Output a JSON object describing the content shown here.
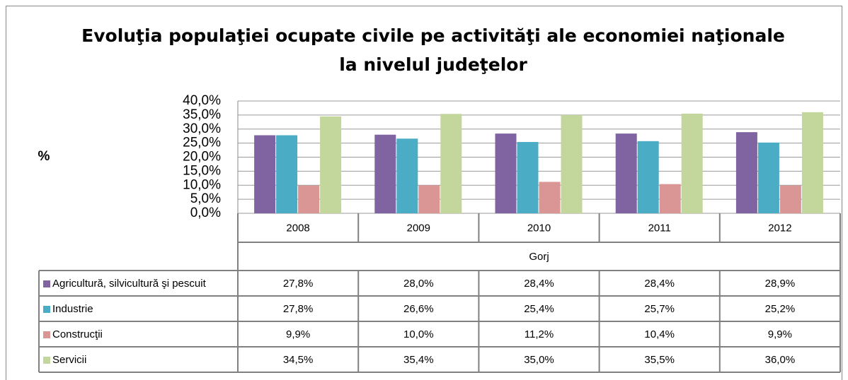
{
  "chart_data": {
    "type": "bar",
    "title": [
      "Evoluţia populaţiei ocupate civile pe activităţi ale economiei naţionale",
      "la nivelul judeţelor"
    ],
    "y_label": "%",
    "categories": [
      "2008",
      "2009",
      "2010",
      "2011",
      "2012"
    ],
    "group_label": "Gorj",
    "series": [
      {
        "name": "Agricultură, silvicultură şi pescuit",
        "color": "#8064a2",
        "values": [
          27.8,
          28.0,
          28.4,
          28.4,
          28.9
        ],
        "value_labels": [
          "27,8%",
          "28,0%",
          "28,4%",
          "28,4%",
          "28,9%"
        ]
      },
      {
        "name": "Industrie",
        "color": "#4bacc6",
        "values": [
          27.8,
          26.6,
          25.4,
          25.7,
          25.2
        ],
        "value_labels": [
          "27,8%",
          "26,6%",
          "25,4%",
          "25,7%",
          "25,2%"
        ]
      },
      {
        "name": "Construcţii",
        "color": "#d99694",
        "values": [
          9.9,
          10.0,
          11.2,
          10.4,
          9.9
        ],
        "value_labels": [
          "9,9%",
          "10,0%",
          "11,2%",
          "10,4%",
          "9,9%"
        ]
      },
      {
        "name": "Servicii",
        "color": "#c3d69b",
        "values": [
          34.5,
          35.4,
          35.0,
          35.5,
          36.0
        ],
        "value_labels": [
          "34,5%",
          "35,4%",
          "35,0%",
          "35,5%",
          "36,0%"
        ]
      }
    ],
    "ylim": [
      0,
      40
    ],
    "yticks": [
      {
        "value": 0,
        "label": "0,0%"
      },
      {
        "value": 5,
        "label": "5,0%"
      },
      {
        "value": 10,
        "label": "10,0%"
      },
      {
        "value": 15,
        "label": "15,0%"
      },
      {
        "value": 20,
        "label": "20,0%"
      },
      {
        "value": 25,
        "label": "25,0%"
      },
      {
        "value": 30,
        "label": "30,0%"
      },
      {
        "value": 35,
        "label": "35,0%"
      },
      {
        "value": 40,
        "label": "40,0%"
      }
    ],
    "grid": true
  }
}
